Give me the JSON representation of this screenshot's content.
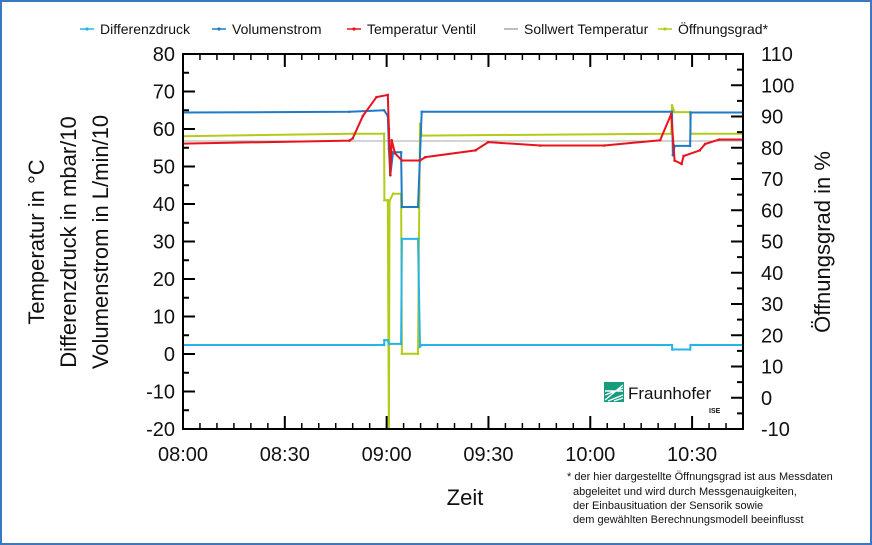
{
  "chart_data": {
    "type": "line",
    "xlabel": "Zeit",
    "ylabel_left": [
      "Temperatur in °C",
      "Differenzdruck in mbar/10",
      "Volumenstrom in L/min/10"
    ],
    "ylabel_right": "Öffnungsgrad in %",
    "xlim": [
      "08:00",
      "10:45"
    ],
    "xticks": [
      "08:00",
      "08:30",
      "09:00",
      "09:30",
      "10:00",
      "10:30"
    ],
    "ylim_left": [
      -20,
      80
    ],
    "yticks_left": [
      -20,
      -10,
      0,
      10,
      20,
      30,
      40,
      50,
      60,
      70,
      80
    ],
    "ylim_right": [
      -10,
      110
    ],
    "yticks_right": [
      -10,
      0,
      10,
      20,
      30,
      40,
      50,
      60,
      70,
      80,
      90,
      100,
      110
    ],
    "grid": false,
    "legend_position": "top",
    "series": [
      {
        "name": "Differenzdruck",
        "axis": "left",
        "color": "#27b4e6",
        "points": [
          [
            "08:00:00",
            2.4
          ],
          [
            "08:59:15",
            2.4
          ],
          [
            "08:59:20",
            3.7
          ],
          [
            "09:00:20",
            3.7
          ],
          [
            "09:00:40",
            2.7
          ],
          [
            "09:04:15",
            2.7
          ],
          [
            "09:04:30",
            30.7
          ],
          [
            "09:09:15",
            30.7
          ],
          [
            "09:09:50",
            2.0
          ],
          [
            "09:10:20",
            2.4
          ],
          [
            "10:24:05",
            2.4
          ],
          [
            "10:24:10",
            1.2
          ],
          [
            "10:29:25",
            1.2
          ],
          [
            "10:29:35",
            2.4
          ],
          [
            "10:45:00",
            2.4
          ]
        ]
      },
      {
        "name": "Volumenstrom",
        "axis": "left",
        "color": "#1f7ac8",
        "points": [
          [
            "08:00:00",
            64.4
          ],
          [
            "08:49:00",
            64.6
          ],
          [
            "08:59:15",
            65.0
          ],
          [
            "09:00:20",
            63.5
          ],
          [
            "09:00:40",
            54.7
          ],
          [
            "09:01:05",
            47.7
          ],
          [
            "09:01:55",
            53.8
          ],
          [
            "09:04:15",
            53.8
          ],
          [
            "09:04:30",
            39.2
          ],
          [
            "09:09:15",
            39.2
          ],
          [
            "09:10:20",
            64.6
          ],
          [
            "10:24:05",
            64.6
          ],
          [
            "10:24:20",
            53.0
          ],
          [
            "10:24:50",
            55.5
          ],
          [
            "10:29:25",
            55.5
          ],
          [
            "10:29:35",
            64.4
          ],
          [
            "10:45:00",
            64.4
          ]
        ]
      },
      {
        "name": "Temperatur Ventil",
        "axis": "left",
        "color": "#e8131c",
        "points": [
          [
            "08:00:00",
            56.1
          ],
          [
            "08:49:00",
            56.9
          ],
          [
            "08:50:00",
            57.5
          ],
          [
            "08:53:00",
            63.5
          ],
          [
            "08:57:00",
            68.5
          ],
          [
            "09:00:20",
            69.1
          ],
          [
            "09:00:40",
            60.0
          ],
          [
            "09:01:05",
            47.7
          ],
          [
            "09:01:30",
            57.0
          ],
          [
            "09:02:30",
            53.5
          ],
          [
            "09:04:30",
            51.6
          ],
          [
            "09:09:50",
            51.6
          ],
          [
            "09:11:25",
            52.5
          ],
          [
            "09:26:10",
            54.3
          ],
          [
            "09:29:55",
            56.5
          ],
          [
            "09:45:15",
            55.6
          ],
          [
            "10:04:10",
            55.6
          ],
          [
            "10:20:35",
            57.0
          ],
          [
            "10:23:50",
            64.0
          ],
          [
            "10:24:50",
            51.6
          ],
          [
            "10:26:55",
            50.7
          ],
          [
            "10:27:30",
            52.8
          ],
          [
            "10:32:15",
            54.3
          ],
          [
            "10:33:50",
            56.0
          ],
          [
            "10:38:00",
            57.2
          ],
          [
            "10:45:00",
            57.2
          ]
        ]
      },
      {
        "name": "Sollwert Temperatur",
        "axis": "left",
        "color": "#a8a8a8",
        "points": [
          [
            "08:00:00",
            56.8
          ],
          [
            "10:45:00",
            56.8
          ]
        ]
      },
      {
        "name": "Öffnungsgrad*",
        "axis": "right",
        "color": "#b4cb19",
        "points": [
          [
            "08:00:00",
            83.7
          ],
          [
            "08:50:00",
            84.5
          ],
          [
            "08:59:15",
            84.5
          ],
          [
            "08:59:20",
            63.2
          ],
          [
            "09:00:20",
            63.2
          ],
          [
            "09:00:40",
            -12
          ],
          [
            "09:00:50",
            63.0
          ],
          [
            "09:01:55",
            65.3
          ],
          [
            "09:04:15",
            65.3
          ],
          [
            "09:04:30",
            14.1
          ],
          [
            "09:09:15",
            14.1
          ],
          [
            "09:09:50",
            87.7
          ],
          [
            "09:10:20",
            83.9
          ],
          [
            "10:23:50",
            84.5
          ],
          [
            "10:24:05",
            93.6
          ],
          [
            "10:24:50",
            91.4
          ],
          [
            "10:29:25",
            91.4
          ],
          [
            "10:29:35",
            84.5
          ],
          [
            "10:45:00",
            84.5
          ]
        ]
      }
    ]
  },
  "logo": {
    "name": "Fraunhofer",
    "sub": "ISE"
  },
  "footnote": [
    "* der hier dargestellte Öffnungsgrad ist aus Messdaten",
    "abgeleitet und wird durch Messgenauigkeiten,",
    "der Einbausituation der Sensorik sowie",
    "dem gewählten Berechnungsmodell beeinflusst"
  ]
}
